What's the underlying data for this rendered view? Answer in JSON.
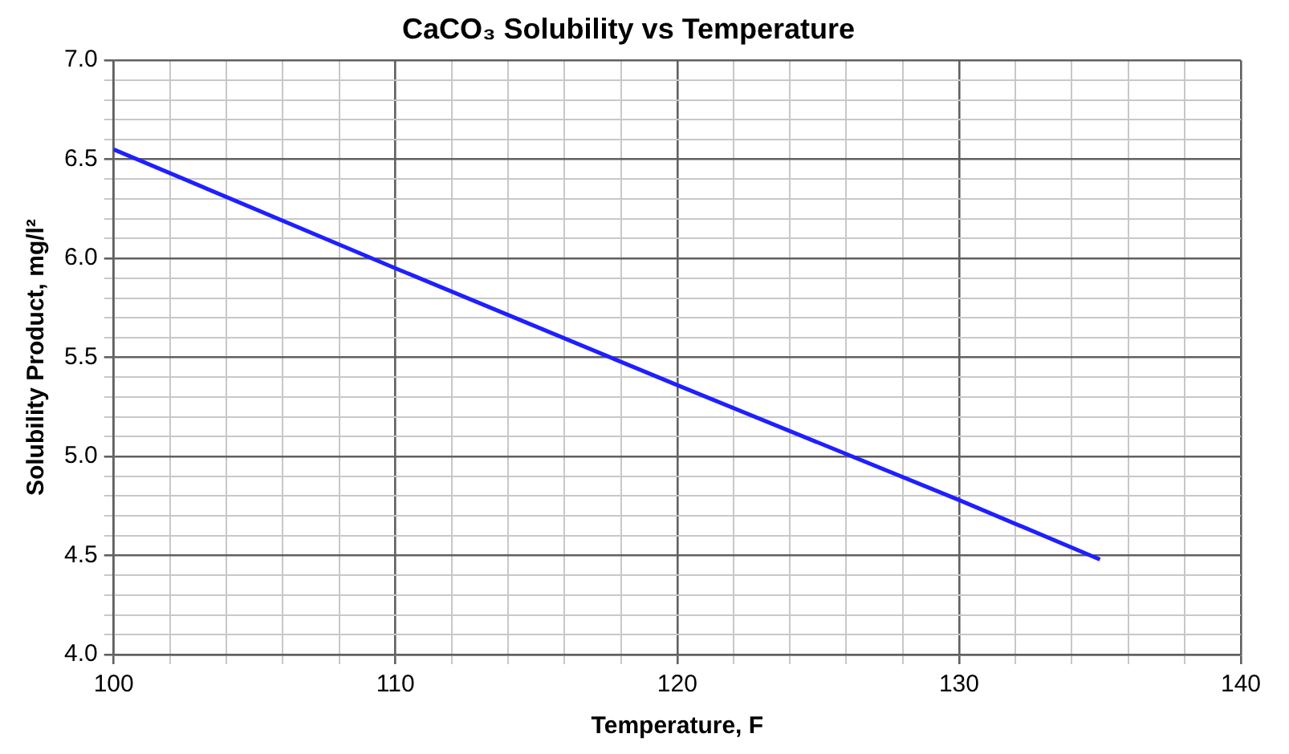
{
  "chart_data": {
    "type": "line",
    "title": "CaCO₃ Solubility vs Temperature",
    "xlabel": "Temperature, F",
    "ylabel": "Solubility Product, mg/l²",
    "x": [
      100,
      110,
      120,
      130,
      135
    ],
    "series": [
      {
        "color": "#1f1fff",
        "values": [
          6.55,
          5.95,
          5.36,
          4.78,
          4.48
        ]
      }
    ],
    "xlim": [
      100,
      140
    ],
    "xticks": [
      100,
      {
        "value": 102,
        "label": null
      },
      {
        "value": 104,
        "label": null
      },
      {
        "value": 106,
        "label": null
      },
      {
        "value": 108,
        "label": null
      },
      110,
      {
        "value": 112,
        "label": null
      },
      {
        "value": 114,
        "label": null
      },
      {
        "value": 116,
        "label": null
      },
      {
        "value": 118,
        "label": null
      },
      120,
      {
        "value": 122,
        "label": null
      },
      {
        "value": 124,
        "label": null
      },
      {
        "value": 126,
        "label": null
      },
      {
        "value": 128,
        "label": null
      },
      130,
      {
        "value": 132,
        "label": null
      },
      {
        "value": 134,
        "label": null
      },
      {
        "value": 136,
        "label": null
      },
      {
        "value": 138,
        "label": null
      },
      140
    ],
    "ylim": [
      4,
      7
    ],
    "yticks": [
      {
        "value": 4,
        "label": "4.0"
      },
      {
        "value": 4.1,
        "label": null
      },
      {
        "value": 4.2,
        "label": null
      },
      {
        "value": 4.3,
        "label": null
      },
      {
        "value": 4.4,
        "label": null
      },
      4.5,
      {
        "value": 4.6,
        "label": null
      },
      {
        "value": 4.7,
        "label": null
      },
      {
        "value": 4.8,
        "label": null
      },
      {
        "value": 4.9,
        "label": null
      },
      {
        "value": 5,
        "label": "5.0"
      },
      {
        "value": 5.1,
        "label": null
      },
      {
        "value": 5.2,
        "label": null
      },
      {
        "value": 5.3,
        "label": null
      },
      {
        "value": 5.4,
        "label": null
      },
      5.5,
      {
        "value": 5.6,
        "label": null
      },
      {
        "value": 5.7,
        "label": null
      },
      {
        "value": 5.8,
        "label": null
      },
      {
        "value": 5.9,
        "label": null
      },
      {
        "value": 6,
        "label": "6.0"
      },
      {
        "value": 6.1,
        "label": null
      },
      {
        "value": 6.2,
        "label": null
      },
      {
        "value": 6.3,
        "label": null
      },
      {
        "value": 6.4,
        "label": null
      },
      6.5,
      {
        "value": 6.6,
        "label": null
      },
      {
        "value": 6.7,
        "label": null
      },
      {
        "value": 6.8,
        "label": null
      },
      {
        "value": 6.9,
        "label": null
      },
      {
        "value": 7,
        "label": "7.0"
      }
    ],
    "grid": true,
    "legend": false,
    "marker": "none",
    "line_style": "solid"
  }
}
